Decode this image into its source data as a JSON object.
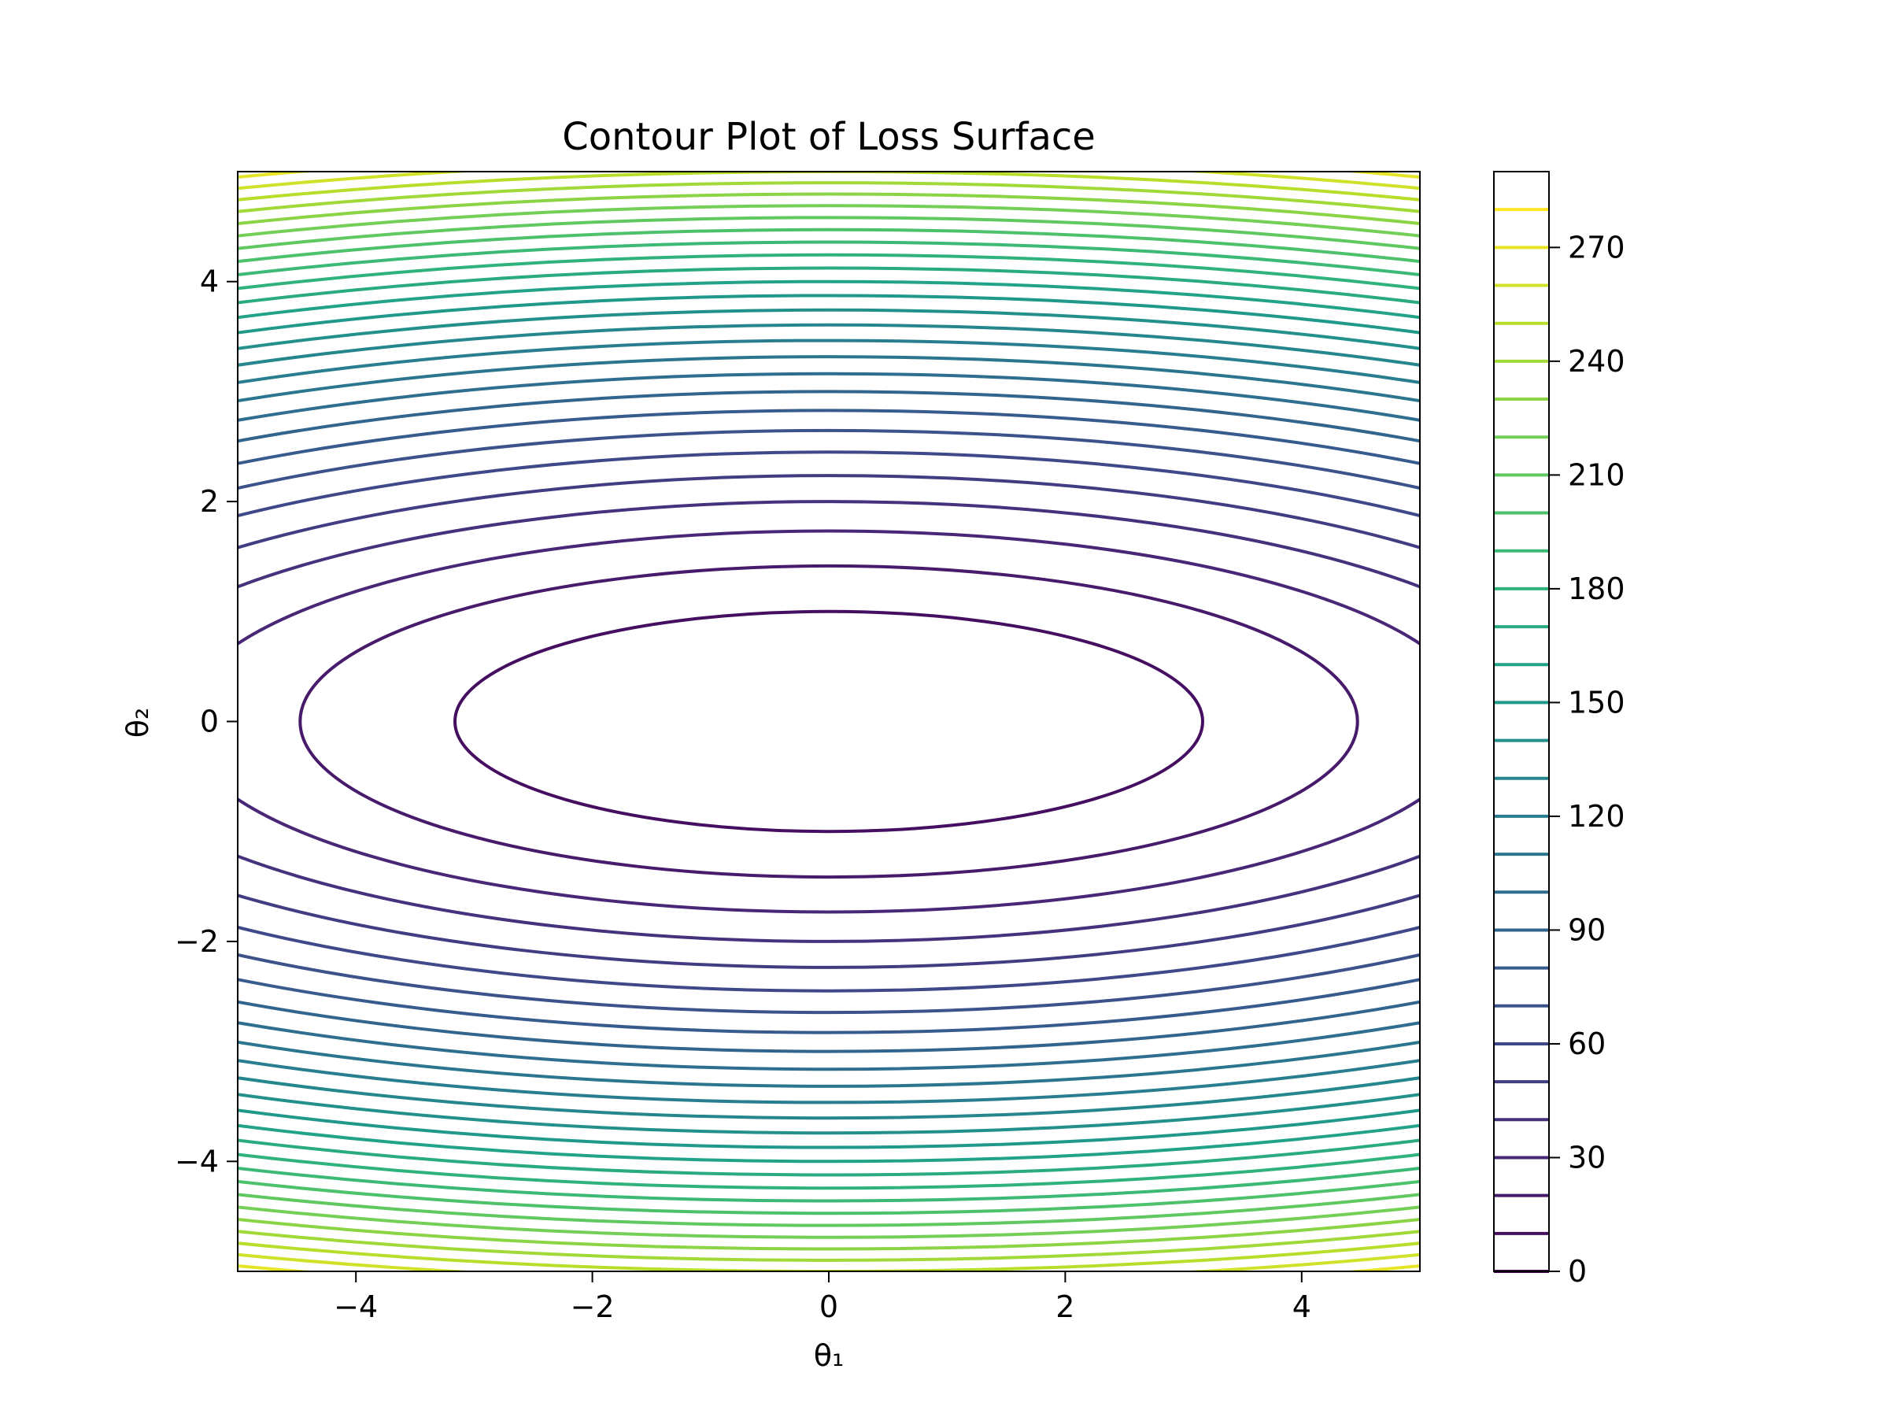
{
  "chart_data": {
    "type": "contour",
    "title": "Contour Plot of Loss Surface",
    "xlabel": "θ₁",
    "ylabel": "θ₂",
    "xlim": [
      -5,
      5
    ],
    "ylim": [
      -5,
      5
    ],
    "x_ticks": [
      -4,
      -2,
      0,
      2,
      4
    ],
    "y_ticks": [
      -4,
      -2,
      0,
      2,
      4
    ],
    "x_tick_labels": [
      "−4",
      "−2",
      "0",
      "2",
      "4"
    ],
    "y_tick_labels": [
      "−4",
      "−2",
      "0",
      "2",
      "4"
    ],
    "function": "L(θ₁, θ₂) = θ₁² + 10·θ₂²",
    "level_min": 0,
    "level_max": 280,
    "level_step": 10,
    "colormap": "viridis",
    "colorbar": {
      "ticks": [
        0,
        30,
        60,
        90,
        120,
        150,
        180,
        210,
        240,
        270
      ],
      "tick_labels": [
        "0",
        "30",
        "60",
        "90",
        "120",
        "150",
        "180",
        "210",
        "240",
        "270"
      ],
      "placement": "right"
    },
    "grid": false
  }
}
